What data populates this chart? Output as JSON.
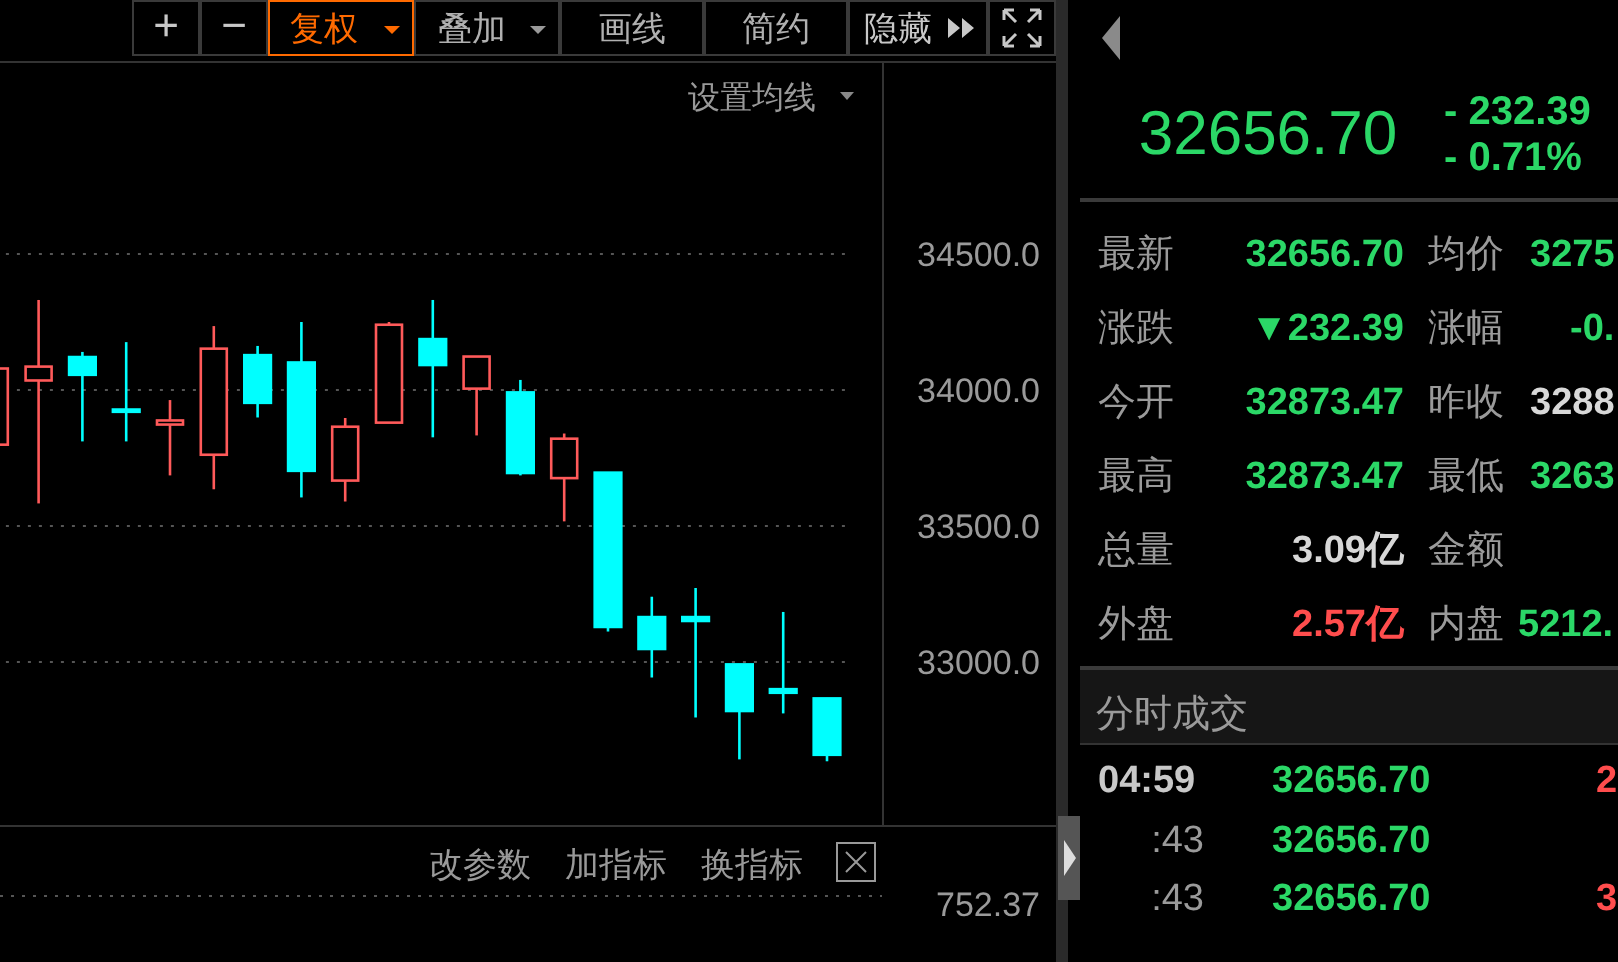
{
  "chart_data": [
    {
      "type": "candlestick",
      "categories": [
        null,
        null,
        null,
        null,
        null,
        null,
        null,
        null,
        null,
        null,
        null,
        null,
        null,
        null,
        null,
        null,
        null,
        null,
        null,
        null
      ],
      "ohlc": [
        [
          33799,
          34079,
          33799,
          34079
        ],
        [
          34035,
          34331,
          33583,
          34086
        ],
        [
          34123,
          34140,
          33811,
          34054
        ],
        [
          33930,
          34176,
          33811,
          33918
        ],
        [
          33873,
          33963,
          33686,
          33888
        ],
        [
          33762,
          34235,
          33635,
          34152
        ],
        [
          34130,
          34162,
          33899,
          33951
        ],
        [
          34103,
          34250,
          33605,
          33701
        ],
        [
          33667,
          33897,
          33590,
          33865
        ],
        [
          33880,
          34250,
          33880,
          34240
        ],
        [
          34189,
          34331,
          33826,
          34090
        ],
        [
          34005,
          34123,
          33833,
          34123
        ],
        [
          33993,
          34037,
          33686,
          33693
        ],
        [
          33676,
          33840,
          33517,
          33821
        ],
        [
          33698,
          33698,
          33112,
          33127
        ],
        [
          33167,
          33240,
          32943,
          33046
        ],
        [
          33167,
          33272,
          32796,
          33149
        ],
        [
          32993,
          32993,
          32642,
          32818
        ],
        [
          32902,
          33184,
          32811,
          32885
        ],
        [
          32868,
          32868,
          32635,
          32657
        ]
      ],
      "colors": [
        "#ff5a5a",
        "#ff5a5a",
        "#00ffff",
        "#00ffff",
        "#ff5a5a",
        "#ff5a5a",
        "#00ffff",
        "#00ffff",
        "#ff5a5a",
        "#ff5a5a",
        "#00ffff",
        "#ff5a5a",
        "#00ffff",
        "#ff5a5a",
        "#00ffff",
        "#00ffff",
        "#00ffff",
        "#00ffff",
        "#00ffff",
        "#00ffff"
      ],
      "ylim": [
        32400,
        35200
      ],
      "yticks": [
        {
          "value": 33000,
          "label": "33000.0"
        },
        {
          "value": 33500,
          "label": "33500.0"
        },
        {
          "value": 34000,
          "label": "34000.0"
        },
        {
          "value": 34500,
          "label": "34500.0"
        }
      ],
      "grid": "y",
      "tick_labels": "y",
      "annotations": [
        "+",
        "−",
        "复权",
        "叠加",
        "画线",
        "简约",
        "隐藏",
        "设置均线",
        "改参数",
        "加指标",
        "换指标",
        "752.37"
      ]
    },
    {
      "type": "other",
      "annotations": [
        "32656.70",
        "- 232.39",
        "- 0.71%",
        "最新",
        "32656.70",
        "均价",
        "3275",
        "涨跌",
        "▼232.39",
        "涨幅",
        "-0.",
        "今开",
        "32873.47",
        "昨收",
        "3288",
        "最高",
        "32873.47",
        "最低",
        "3263",
        "总量",
        "3.09亿",
        "金额",
        "外盘",
        "2.57亿",
        "内盘",
        "5212.",
        "分时成交",
        "04:59",
        "32656.70",
        "2",
        ":43",
        "32656.70",
        ":43",
        "32656.70",
        "3"
      ]
    }
  ]
}
